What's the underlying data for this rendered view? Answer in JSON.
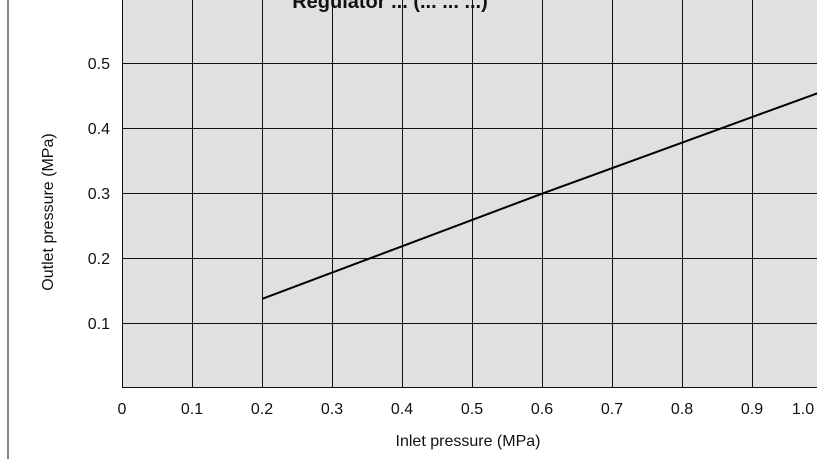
{
  "chart_data": {
    "type": "line",
    "title": "Regulator ... (... ... ...)",
    "xlabel": "Inlet pressure (MPa)",
    "ylabel": "Outlet pressure (MPa)",
    "xlim": [
      0,
      1.0
    ],
    "ylim": [
      0,
      0.5
    ],
    "x_ticks": [
      "0",
      "0.1",
      "0.2",
      "0.3",
      "0.4",
      "0.5",
      "0.6",
      "0.7",
      "0.8",
      "0.9",
      "1.0"
    ],
    "y_ticks": [
      "0.1",
      "0.2",
      "0.3",
      "0.4",
      "0.5"
    ],
    "grid": true,
    "series": [
      {
        "x": [
          0.2,
          0.6,
          1.0
        ],
        "y": [
          0.137,
          0.299,
          0.456
        ]
      }
    ],
    "colors": {
      "plot_background": "#e0e0e0",
      "grid": "#111111",
      "line": "#000000"
    }
  }
}
